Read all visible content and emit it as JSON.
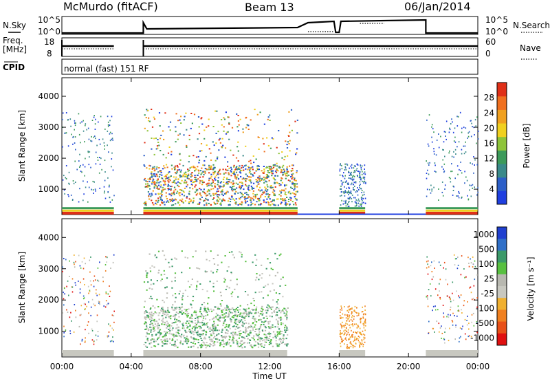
{
  "header": {
    "station": "McMurdo (fitACF)",
    "beam": "Beam 13",
    "date": "06/Jan/2014"
  },
  "status_panels": {
    "nsky_label": "N.Sky",
    "nsky_ticks": [
      "10^5",
      "10^0"
    ],
    "nsearch_label": "N.Search",
    "nsearch_ticks": [
      "10^5",
      "10^0"
    ],
    "freq_label_1": "Freq.",
    "freq_label_2": "[MHz]",
    "freq_ticks": [
      "18",
      "8"
    ],
    "nave_label": "Nave",
    "nave_ticks": [
      "60",
      "0"
    ],
    "cpid_label": "CPID",
    "cpid_text": "normal (fast) 151 RF"
  },
  "chart_data": [
    {
      "type": "heatmap",
      "name": "Power",
      "ylabel": "Slant Range [km]",
      "ylim": [
        180,
        4600
      ],
      "yticks": [
        "1000",
        "2000",
        "3000",
        "4000"
      ],
      "xlabel": "Time UT",
      "xlim_hours": [
        0,
        24
      ],
      "colorbar_label": "Power [dB]",
      "colorbar_ticks": [
        "4",
        "8",
        "12",
        "16",
        "20",
        "24",
        "28"
      ],
      "colorbar_colors": [
        "#1f3fe0",
        "#2c5fc8",
        "#3a8a8a",
        "#3c9a5a",
        "#8ec43a",
        "#f0d020",
        "#f0a020",
        "#f07020",
        "#e03018"
      ],
      "data_intervals_hours": [
        [
          0,
          3.0
        ],
        [
          4.7,
          13.6
        ],
        [
          16.0,
          17.5
        ],
        [
          21.0,
          24
        ]
      ]
    },
    {
      "type": "heatmap",
      "name": "Velocity",
      "ylabel": "Slant Range [km]",
      "ylim": [
        180,
        4600
      ],
      "yticks": [
        "1000",
        "2000",
        "3000",
        "4000"
      ],
      "xlabel": "Time UT",
      "xlim_hours": [
        0,
        24
      ],
      "xticks": [
        "00:00",
        "04:00",
        "08:00",
        "12:00",
        "16:00",
        "20:00",
        "00:00"
      ],
      "colorbar_label": "Velocity [m s⁻¹]",
      "colorbar_ticks": [
        "1000",
        "500",
        "100",
        "25",
        "-25",
        "-100",
        "-500",
        "-1000"
      ],
      "colorbar_colors": [
        "#2040d0",
        "#3070c8",
        "#3c9a6a",
        "#58c040",
        "#b8b8b0",
        "#c8c8c0",
        "#f0b030",
        "#f08020",
        "#e85018",
        "#e01010"
      ],
      "data_intervals_hours": [
        [
          0,
          3.0
        ],
        [
          4.7,
          13.0
        ],
        [
          16.0,
          17.5
        ],
        [
          21.0,
          24
        ]
      ]
    }
  ]
}
